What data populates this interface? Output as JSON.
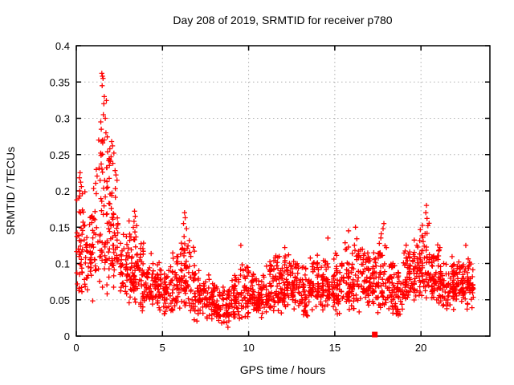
{
  "page": {
    "background_color": "#ffffff"
  },
  "chart_data": {
    "type": "scatter",
    "title": "Day 208 of 2019, SRMTID for receiver p780",
    "xlabel": "GPS time / hours",
    "ylabel": "SRMTID / TECUs",
    "xlim": [
      0,
      24
    ],
    "ylim": [
      0,
      0.4
    ],
    "xticks": {
      "values": [
        0,
        5,
        10,
        15,
        20
      ],
      "labels": [
        "0",
        "5",
        "10",
        "15",
        "20"
      ]
    },
    "yticks": {
      "values": [
        0,
        0.05,
        0.1,
        0.15,
        0.2,
        0.25,
        0.3,
        0.35,
        0.4
      ],
      "labels": [
        "0",
        "0.05",
        "0.1",
        "0.15",
        "0.2",
        "0.25",
        "0.3",
        "0.35",
        "0.4"
      ]
    },
    "grid": {
      "style": "dotted",
      "color": "#b0b0b0",
      "at": "major-ticks"
    },
    "legend": "none",
    "border_color": "#000000",
    "marker": {
      "shape": "plus",
      "color": "#ff0000",
      "size": 7,
      "stroke_width": 1.3
    },
    "data_x_range_hours": [
      0,
      23.1
    ],
    "seed": 20190728,
    "bin_format": "[x_start_hours, x_end_hours, n_points, y_min, y_mode, y_max] — envelope of dense scatter cloud read from plot",
    "bins": [
      [
        0.0,
        0.5,
        45,
        0.05,
        0.12,
        0.23
      ],
      [
        0.5,
        1.0,
        40,
        0.04,
        0.09,
        0.2
      ],
      [
        1.0,
        1.5,
        40,
        0.05,
        0.13,
        0.3
      ],
      [
        1.5,
        2.0,
        50,
        0.04,
        0.14,
        0.34
      ],
      [
        2.0,
        2.5,
        45,
        0.05,
        0.1,
        0.26
      ],
      [
        2.5,
        3.0,
        40,
        0.05,
        0.08,
        0.15
      ],
      [
        3.0,
        3.5,
        50,
        0.04,
        0.08,
        0.16
      ],
      [
        3.5,
        4.0,
        45,
        0.03,
        0.07,
        0.14
      ],
      [
        4.0,
        4.5,
        40,
        0.03,
        0.065,
        0.12
      ],
      [
        4.5,
        5.0,
        40,
        0.03,
        0.06,
        0.11
      ],
      [
        5.0,
        5.5,
        40,
        0.025,
        0.055,
        0.1
      ],
      [
        5.5,
        6.0,
        40,
        0.02,
        0.05,
        0.12
      ],
      [
        6.0,
        6.5,
        45,
        0.03,
        0.07,
        0.16
      ],
      [
        6.5,
        7.0,
        40,
        0.02,
        0.06,
        0.14
      ],
      [
        7.0,
        7.5,
        40,
        0.02,
        0.05,
        0.1
      ],
      [
        7.5,
        8.0,
        40,
        0.02,
        0.045,
        0.09
      ],
      [
        8.0,
        8.5,
        40,
        0.015,
        0.04,
        0.08
      ],
      [
        8.5,
        9.0,
        40,
        0.01,
        0.04,
        0.08
      ],
      [
        9.0,
        9.5,
        45,
        0.02,
        0.045,
        0.09
      ],
      [
        9.5,
        10.0,
        40,
        0.02,
        0.05,
        0.11
      ],
      [
        10.0,
        10.5,
        40,
        0.03,
        0.05,
        0.1
      ],
      [
        10.5,
        11.0,
        40,
        0.02,
        0.05,
        0.09
      ],
      [
        11.0,
        11.5,
        45,
        0.03,
        0.055,
        0.11
      ],
      [
        11.5,
        12.0,
        45,
        0.03,
        0.06,
        0.12
      ],
      [
        12.0,
        12.5,
        45,
        0.03,
        0.065,
        0.12
      ],
      [
        12.5,
        13.0,
        45,
        0.03,
        0.06,
        0.12
      ],
      [
        13.0,
        13.5,
        40,
        0.02,
        0.05,
        0.1
      ],
      [
        13.5,
        14.0,
        40,
        0.03,
        0.055,
        0.12
      ],
      [
        14.0,
        14.5,
        45,
        0.03,
        0.06,
        0.13
      ],
      [
        14.5,
        15.0,
        40,
        0.03,
        0.06,
        0.11
      ],
      [
        15.0,
        15.5,
        40,
        0.02,
        0.055,
        0.12
      ],
      [
        15.5,
        16.0,
        45,
        0.03,
        0.06,
        0.14
      ],
      [
        16.0,
        16.5,
        45,
        0.03,
        0.07,
        0.15
      ],
      [
        16.5,
        17.0,
        45,
        0.04,
        0.07,
        0.13
      ],
      [
        17.0,
        17.5,
        40,
        0.03,
        0.065,
        0.12
      ],
      [
        17.5,
        18.0,
        45,
        0.03,
        0.07,
        0.15
      ],
      [
        18.0,
        18.5,
        40,
        0.03,
        0.06,
        0.12
      ],
      [
        18.5,
        19.0,
        40,
        0.02,
        0.055,
        0.11
      ],
      [
        19.0,
        19.5,
        45,
        0.04,
        0.07,
        0.13
      ],
      [
        19.5,
        20.0,
        45,
        0.04,
        0.08,
        0.15
      ],
      [
        20.0,
        20.5,
        45,
        0.04,
        0.08,
        0.17
      ],
      [
        20.5,
        21.0,
        45,
        0.04,
        0.075,
        0.14
      ],
      [
        21.0,
        21.5,
        45,
        0.03,
        0.07,
        0.12
      ],
      [
        21.5,
        22.0,
        45,
        0.03,
        0.065,
        0.12
      ],
      [
        22.0,
        22.5,
        50,
        0.04,
        0.07,
        0.12
      ],
      [
        22.5,
        23.1,
        50,
        0.03,
        0.065,
        0.12
      ]
    ],
    "outlier_points": [
      [
        1.48,
        0.362
      ],
      [
        1.52,
        0.358
      ],
      [
        1.55,
        0.355
      ],
      [
        1.5,
        0.345
      ],
      [
        1.62,
        0.33
      ],
      [
        1.6,
        0.32
      ],
      [
        1.57,
        0.305
      ],
      [
        1.68,
        0.3
      ],
      [
        1.42,
        0.295
      ],
      [
        1.45,
        0.285
      ],
      [
        1.72,
        0.28
      ],
      [
        1.3,
        0.27
      ],
      [
        2.05,
        0.268
      ],
      [
        2.1,
        0.262
      ],
      [
        1.95,
        0.258
      ],
      [
        2.18,
        0.252
      ],
      [
        2.02,
        0.247
      ],
      [
        1.88,
        0.242
      ],
      [
        2.12,
        0.238
      ],
      [
        1.78,
        0.232
      ],
      [
        2.25,
        0.228
      ],
      [
        2.3,
        0.222
      ],
      [
        0.22,
        0.225
      ],
      [
        0.18,
        0.218
      ],
      [
        0.25,
        0.212
      ],
      [
        0.3,
        0.206
      ],
      [
        0.2,
        0.2
      ],
      [
        0.35,
        0.196
      ],
      [
        0.15,
        0.19
      ],
      [
        3.38,
        0.172
      ],
      [
        3.42,
        0.165
      ],
      [
        3.35,
        0.158
      ],
      [
        3.5,
        0.152
      ],
      [
        6.28,
        0.17
      ],
      [
        6.32,
        0.163
      ],
      [
        6.22,
        0.155
      ],
      [
        6.4,
        0.148
      ],
      [
        20.32,
        0.18
      ],
      [
        20.28,
        0.17
      ],
      [
        20.35,
        0.162
      ],
      [
        20.4,
        0.152
      ],
      [
        17.85,
        0.155
      ],
      [
        17.8,
        0.148
      ],
      [
        16.2,
        0.15
      ],
      [
        15.8,
        0.145
      ],
      [
        14.6,
        0.135
      ],
      [
        9.55,
        0.125
      ],
      [
        12.1,
        0.122
      ],
      [
        21.1,
        0.122
      ],
      [
        22.6,
        0.125
      ]
    ],
    "event_marker": {
      "x": 17.32,
      "y": 0.001,
      "shape": "filled-square",
      "color": "#ff0000",
      "size": 7
    }
  }
}
